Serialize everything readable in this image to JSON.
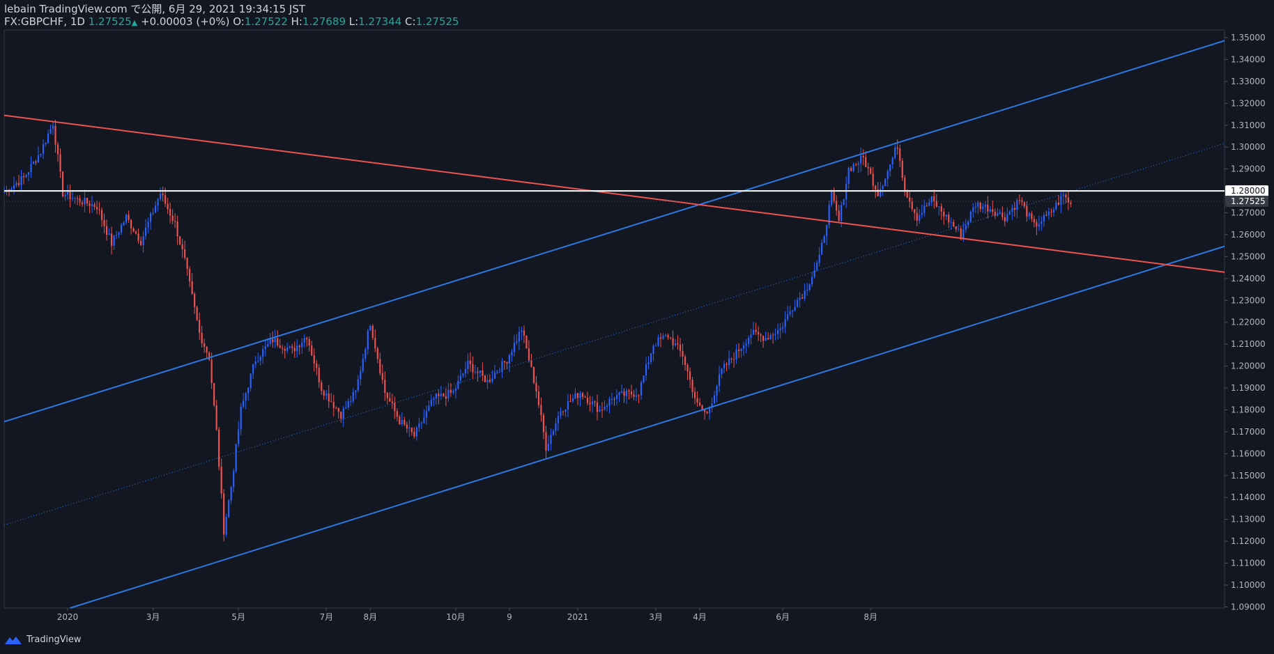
{
  "header": {
    "publisher": "lebain TradingView.com で公開, 6月 29, 2021 19:34:15 JST",
    "symbol": "FX:GBPCHF, 1D",
    "last": "1.27525",
    "arrow": "▲",
    "change": "+0.00003 (+0%)",
    "o_label": "O:",
    "o_value": "1.27522",
    "h_label": "H:",
    "h_value": "1.27689",
    "l_label": "L:",
    "l_value": "1.27344",
    "c_label": "C:",
    "c_value": "1.27525"
  },
  "footer": {
    "brand": "TradingView",
    "logo_icon": "tradingview-logo-icon"
  },
  "colors": {
    "background": "#131722",
    "up": "#2962ff",
    "down": "#ef5350",
    "channel": "#2a7ae2",
    "resistance": "#ef5350",
    "level": "#ffffff",
    "axis_text": "#b2b5be"
  },
  "chart_data": {
    "type": "candlestick",
    "symbol": "FX:GBPCHF",
    "interval": "1D",
    "y_axis": {
      "side": "right",
      "ticks": [
        "1.35000",
        "1.34000",
        "1.33000",
        "1.32000",
        "1.31000",
        "1.30000",
        "1.29000",
        "1.28000",
        "1.27000",
        "1.26000",
        "1.25000",
        "1.24000",
        "1.23000",
        "1.22000",
        "1.21000",
        "1.20000",
        "1.19000",
        "1.18000",
        "1.17000",
        "1.16000",
        "1.15000",
        "1.14000",
        "1.13000",
        "1.12000",
        "1.11000",
        "1.10000",
        "1.09000"
      ],
      "range": [
        1.0895,
        1.3535
      ]
    },
    "x_axis": {
      "ticks": [
        "2020",
        "3月",
        "5月",
        "7月",
        "8月",
        "10月",
        "9",
        "2021",
        "3月",
        "4月",
        "6月",
        "8月"
      ]
    },
    "price_labels": [
      {
        "value": "1.28000",
        "style": "level"
      },
      {
        "value": "1.27525",
        "style": "last"
      }
    ],
    "trendlines": [
      {
        "name": "upper-channel",
        "color": "channel",
        "from": [
          0,
          1.1746
        ],
        "to": [
          500,
          1.3486
        ]
      },
      {
        "name": "lower-channel",
        "color": "channel",
        "from": [
          27,
          1.0895
        ],
        "to": [
          500,
          1.2547
        ]
      },
      {
        "name": "mid-channel-dotted",
        "color": "channel",
        "style": "dotted",
        "from": [
          0,
          1.1274
        ],
        "to": [
          500,
          1.3017
        ]
      },
      {
        "name": "resistance",
        "color": "resistance",
        "from": [
          0,
          1.3145
        ],
        "to": [
          500,
          1.2429
        ]
      },
      {
        "name": "horizontal-level",
        "color": "level",
        "value": 1.28
      }
    ],
    "series": [
      {
        "name": "GBPCHF",
        "keypoints": [
          [
            0,
            1.2795
          ],
          [
            8,
            1.286
          ],
          [
            15,
            1.298
          ],
          [
            20,
            1.311
          ],
          [
            24,
            1.279
          ],
          [
            30,
            1.276
          ],
          [
            38,
            1.273
          ],
          [
            44,
            1.256
          ],
          [
            50,
            1.268
          ],
          [
            56,
            1.257
          ],
          [
            64,
            1.279
          ],
          [
            70,
            1.265
          ],
          [
            74,
            1.248
          ],
          [
            80,
            1.215
          ],
          [
            84,
            1.204
          ],
          [
            87,
            1.17
          ],
          [
            90,
            1.125
          ],
          [
            93,
            1.145
          ],
          [
            97,
            1.18
          ],
          [
            103,
            1.203
          ],
          [
            110,
            1.212
          ],
          [
            118,
            1.207
          ],
          [
            124,
            1.214
          ],
          [
            130,
            1.19
          ],
          [
            138,
            1.178
          ],
          [
            144,
            1.188
          ],
          [
            150,
            1.22
          ],
          [
            156,
            1.188
          ],
          [
            162,
            1.175
          ],
          [
            168,
            1.168
          ],
          [
            176,
            1.185
          ],
          [
            184,
            1.188
          ],
          [
            190,
            1.201
          ],
          [
            198,
            1.193
          ],
          [
            206,
            1.203
          ],
          [
            212,
            1.217
          ],
          [
            218,
            1.189
          ],
          [
            222,
            1.163
          ],
          [
            228,
            1.18
          ],
          [
            236,
            1.188
          ],
          [
            244,
            1.18
          ],
          [
            250,
            1.186
          ],
          [
            260,
            1.188
          ],
          [
            266,
            1.21
          ],
          [
            272,
            1.214
          ],
          [
            278,
            1.205
          ],
          [
            284,
            1.182
          ],
          [
            288,
            1.178
          ],
          [
            294,
            1.198
          ],
          [
            300,
            1.206
          ],
          [
            306,
            1.215
          ],
          [
            312,
            1.213
          ],
          [
            318,
            1.217
          ],
          [
            324,
            1.229
          ],
          [
            328,
            1.234
          ],
          [
            334,
            1.249
          ],
          [
            339,
            1.278
          ],
          [
            342,
            1.266
          ],
          [
            346,
            1.29
          ],
          [
            352,
            1.295
          ],
          [
            358,
            1.279
          ],
          [
            362,
            1.289
          ],
          [
            366,
            1.301
          ],
          [
            369,
            1.281
          ],
          [
            374,
            1.268
          ],
          [
            380,
            1.276
          ],
          [
            386,
            1.268
          ],
          [
            392,
            1.26
          ],
          [
            398,
            1.274
          ],
          [
            404,
            1.272
          ],
          [
            410,
            1.268
          ],
          [
            416,
            1.276
          ],
          [
            422,
            1.264
          ],
          [
            428,
            1.269
          ],
          [
            434,
            1.278
          ],
          [
            437,
            1.274
          ]
        ]
      }
    ],
    "x_domain": [
      0,
      500
    ]
  }
}
